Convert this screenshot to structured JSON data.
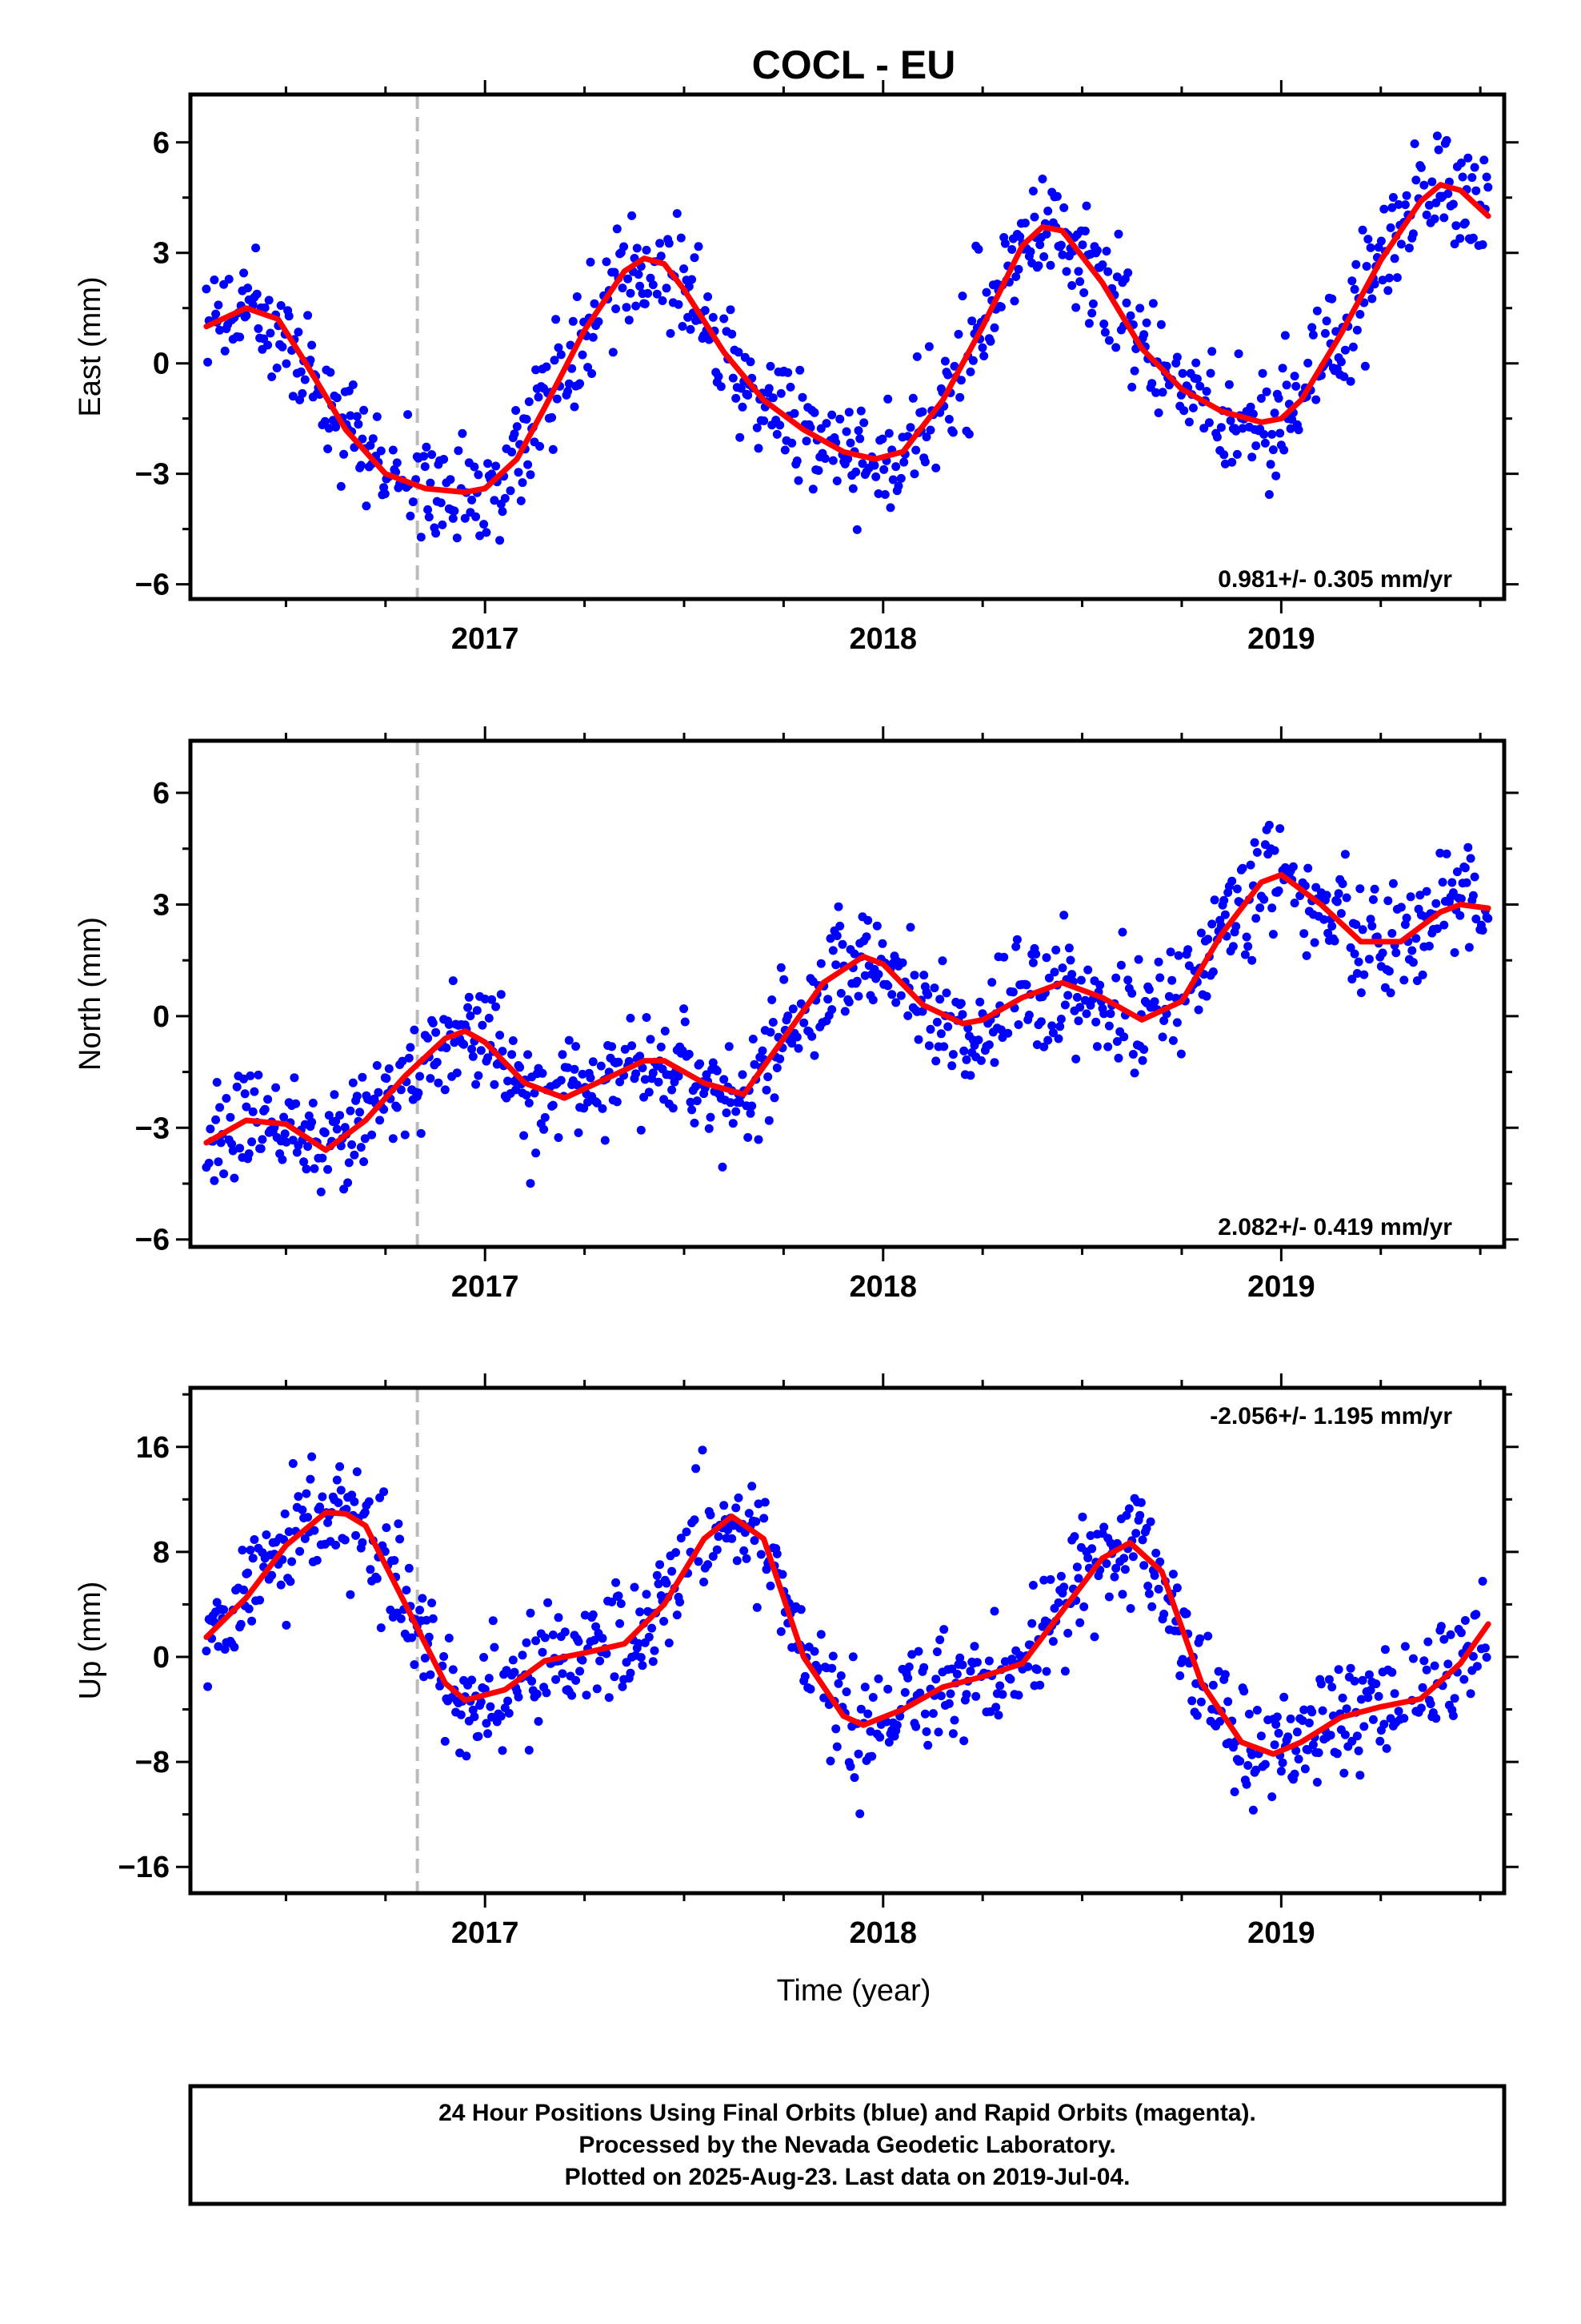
{
  "title": "COCL - EU",
  "xlabel": "Time (year)",
  "footer": {
    "line1": "24 Hour Positions Using Final Orbits (blue) and Rapid Orbits (magenta).",
    "line2": "Processed by the Nevada Geodetic Laboratory.",
    "line3": "Plotted on 2025-Aug-23. Last data on 2019-Jul-04."
  },
  "colors": {
    "data": "#0000ff",
    "model": "#ff0000",
    "event_line": "#bbbbbb",
    "axis": "#000000"
  },
  "chart_data": [
    {
      "type": "scatter",
      "ylabel": "East (mm)",
      "rate": "0.981+/- 0.305 mm/yr",
      "rate_position": "bottom-right",
      "xlim": [
        2016.26,
        2019.56
      ],
      "ylim": [
        -6.4,
        7.3
      ],
      "x_ticks": [
        2017,
        2018,
        2019
      ],
      "x_tick_labels": [
        "2017",
        "2018",
        "2019"
      ],
      "y_ticks": [
        -6,
        -3,
        0,
        3,
        6
      ],
      "y_tick_labels": [
        "−6",
        "−3",
        "0",
        "3",
        "6"
      ],
      "event_line_x": 2016.83,
      "model_curve": {
        "x": [
          2016.3,
          2016.4,
          2016.48,
          2016.55,
          2016.65,
          2016.75,
          2016.85,
          2016.95,
          2017.0,
          2017.08,
          2017.15,
          2017.25,
          2017.35,
          2017.4,
          2017.45,
          2017.5,
          2017.6,
          2017.7,
          2017.8,
          2017.9,
          2017.98,
          2018.05,
          2018.15,
          2018.25,
          2018.35,
          2018.4,
          2018.45,
          2018.55,
          2018.65,
          2018.75,
          2018.85,
          2018.95,
          2019.0,
          2019.05,
          2019.15,
          2019.25,
          2019.35,
          2019.4,
          2019.45,
          2019.52
        ],
        "y": [
          1.0,
          1.5,
          1.2,
          0.0,
          -1.8,
          -3.0,
          -3.4,
          -3.5,
          -3.4,
          -2.6,
          -1.2,
          0.9,
          2.5,
          2.85,
          2.7,
          2.0,
          0.3,
          -1.0,
          -1.8,
          -2.4,
          -2.6,
          -2.4,
          -1.0,
          1.0,
          3.2,
          3.7,
          3.6,
          2.2,
          0.4,
          -0.7,
          -1.3,
          -1.6,
          -1.5,
          -1.0,
          0.8,
          2.8,
          4.4,
          4.85,
          4.7,
          4.0
        ]
      }
    },
    {
      "type": "scatter",
      "ylabel": "North (mm)",
      "rate": "2.082+/- 0.419 mm/yr",
      "rate_position": "bottom-right",
      "xlim": [
        2016.26,
        2019.56
      ],
      "ylim": [
        -6.2,
        7.4
      ],
      "x_ticks": [
        2017,
        2018,
        2019
      ],
      "x_tick_labels": [
        "2017",
        "2018",
        "2019"
      ],
      "y_ticks": [
        -6,
        -3,
        0,
        3,
        6
      ],
      "y_tick_labels": [
        "−6",
        "−3",
        "0",
        "3",
        "6"
      ],
      "event_line_x": 2016.83,
      "model_curve": {
        "x": [
          2016.3,
          2016.4,
          2016.5,
          2016.6,
          2016.7,
          2016.8,
          2016.9,
          2016.95,
          2017.0,
          2017.1,
          2017.2,
          2017.3,
          2017.4,
          2017.45,
          2017.55,
          2017.65,
          2017.75,
          2017.85,
          2017.95,
          2018.0,
          2018.1,
          2018.2,
          2018.25,
          2018.35,
          2018.45,
          2018.55,
          2018.65,
          2018.75,
          2018.85,
          2018.95,
          2019.0,
          2019.1,
          2019.2,
          2019.3,
          2019.4,
          2019.45,
          2019.52
        ],
        "y": [
          -3.4,
          -2.8,
          -2.9,
          -3.6,
          -2.8,
          -1.6,
          -0.6,
          -0.4,
          -0.7,
          -1.8,
          -2.2,
          -1.7,
          -1.2,
          -1.2,
          -1.8,
          -2.1,
          -0.6,
          0.9,
          1.6,
          1.4,
          0.3,
          -0.2,
          -0.1,
          0.5,
          0.9,
          0.5,
          -0.1,
          0.4,
          2.2,
          3.6,
          3.8,
          3.0,
          2.0,
          2.0,
          2.8,
          3.0,
          2.9
        ]
      }
    },
    {
      "type": "scatter",
      "ylabel": "Up (mm)",
      "rate": "-2.056+/- 1.195 mm/yr",
      "rate_position": "top-right",
      "xlim": [
        2016.26,
        2019.56
      ],
      "ylim": [
        -18.0,
        20.5
      ],
      "x_ticks": [
        2017,
        2018,
        2019
      ],
      "x_tick_labels": [
        "2017",
        "2018",
        "2019"
      ],
      "y_ticks": [
        -16,
        -8,
        0,
        8,
        16
      ],
      "y_tick_labels": [
        "−16",
        "−8",
        "0",
        "8",
        "16"
      ],
      "event_line_x": 2016.83,
      "model_curve": {
        "x": [
          2016.3,
          2016.4,
          2016.5,
          2016.6,
          2016.65,
          2016.7,
          2016.8,
          2016.9,
          2016.95,
          2017.05,
          2017.15,
          2017.25,
          2017.35,
          2017.45,
          2017.55,
          2017.62,
          2017.7,
          2017.8,
          2017.9,
          2017.95,
          2018.05,
          2018.15,
          2018.25,
          2018.35,
          2018.45,
          2018.55,
          2018.62,
          2018.7,
          2018.8,
          2018.9,
          2018.98,
          2019.05,
          2019.15,
          2019.25,
          2019.35,
          2019.45,
          2019.52
        ],
        "y": [
          1.5,
          4.5,
          8.5,
          11.0,
          10.9,
          10.0,
          4.0,
          -2.0,
          -3.3,
          -2.5,
          -0.3,
          0.3,
          1.0,
          4.0,
          9.0,
          10.7,
          9.0,
          0.0,
          -4.5,
          -5.2,
          -4.0,
          -2.3,
          -1.5,
          -0.5,
          3.5,
          7.5,
          8.7,
          6.5,
          -2.0,
          -6.5,
          -7.4,
          -6.5,
          -4.6,
          -3.8,
          -3.2,
          -0.5,
          2.5
        ]
      }
    }
  ]
}
